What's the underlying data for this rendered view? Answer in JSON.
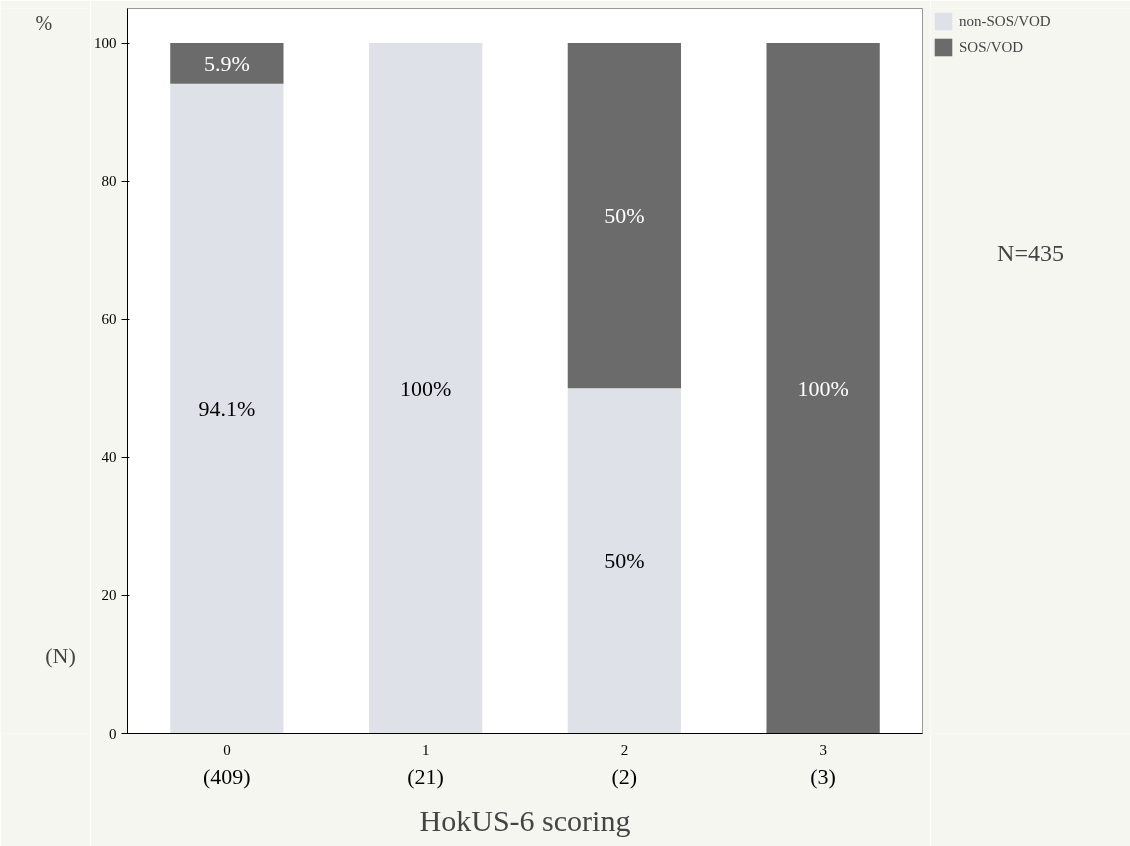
{
  "chart_data": {
    "type": "bar",
    "stacked": true,
    "xlabel": "HokUS-6 scoring",
    "ylabel": "%",
    "categories": [
      "0",
      "1",
      "2",
      "3"
    ],
    "series": [
      {
        "name": "non-SOS/VOD",
        "color": "#dfe1e9",
        "values": [
          94.1,
          100,
          50,
          0
        ],
        "value_labels": [
          "94.1%",
          "100%",
          "50%",
          null
        ]
      },
      {
        "name": "SOS/VOD",
        "color": "#6b6b6b",
        "values": [
          5.9,
          0,
          50,
          100
        ],
        "value_labels": [
          "5.9%",
          null,
          "50%",
          "100%"
        ]
      }
    ],
    "ylim": [
      0,
      105
    ],
    "yticks": [
      0,
      20,
      40,
      60,
      80,
      100
    ],
    "grid": false,
    "legend": "top right",
    "annotations": [
      "(N)",
      "(409)",
      "(21)",
      "(2)",
      "(3)",
      "N=435"
    ]
  }
}
